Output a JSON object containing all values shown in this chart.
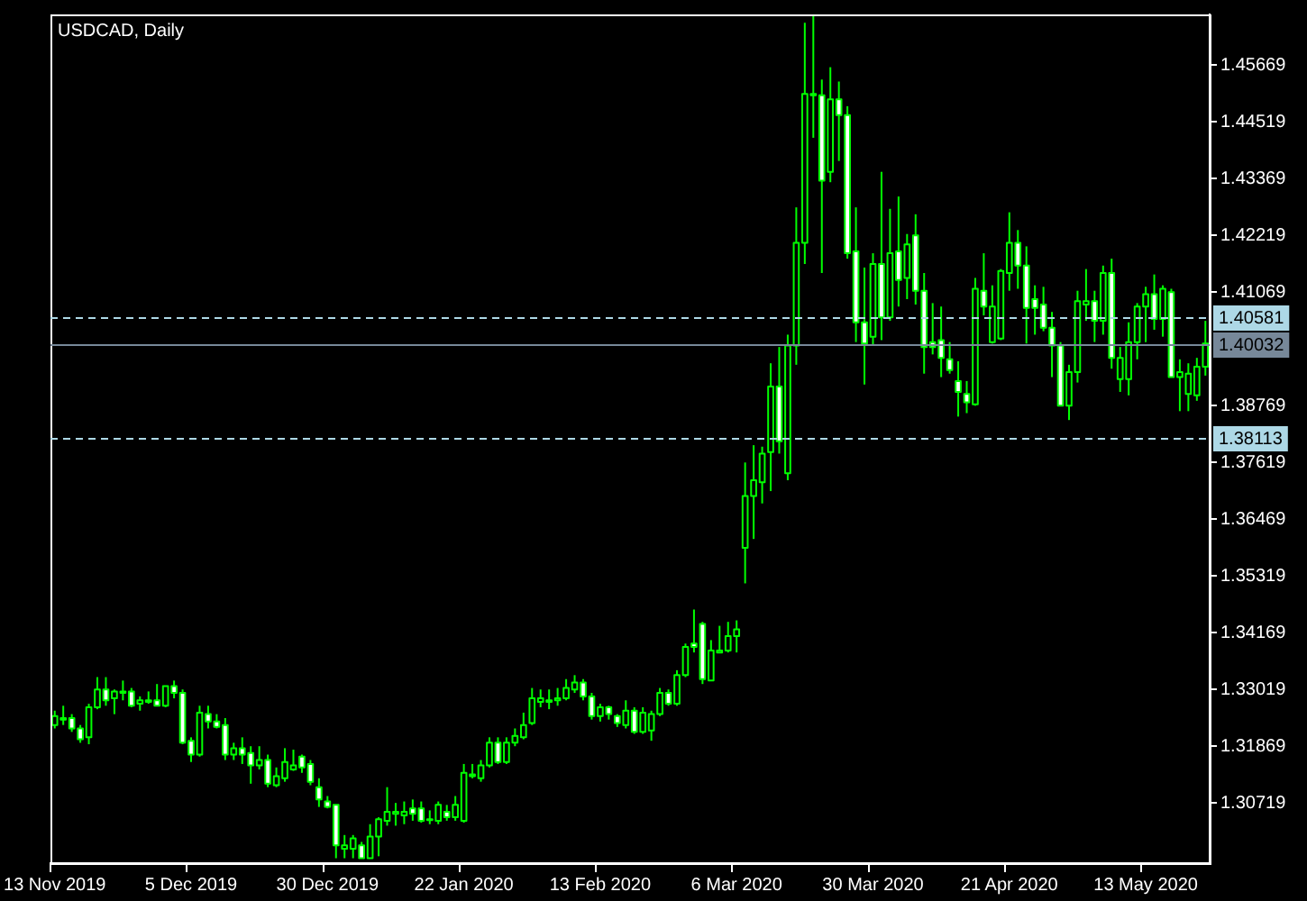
{
  "chart_data": {
    "type": "candlestick",
    "title": "USDCAD, Daily",
    "categories": [
      "13 Nov 2019",
      null,
      null,
      null,
      null,
      null,
      null,
      null,
      null,
      null,
      null,
      null,
      null,
      null,
      null,
      null,
      "5 Dec 2019",
      null,
      null,
      null,
      null,
      null,
      null,
      null,
      null,
      null,
      null,
      null,
      null,
      null,
      null,
      null,
      "30 Dec 2019",
      null,
      null,
      null,
      null,
      null,
      null,
      null,
      null,
      null,
      null,
      null,
      null,
      null,
      null,
      null,
      "22 Jan 2020",
      null,
      null,
      null,
      null,
      null,
      null,
      null,
      null,
      null,
      null,
      null,
      null,
      null,
      null,
      null,
      "13 Feb 2020",
      null,
      null,
      null,
      null,
      null,
      null,
      null,
      null,
      null,
      null,
      null,
      null,
      null,
      null,
      null,
      "6 Mar 2020",
      null,
      null,
      null,
      null,
      null,
      null,
      null,
      null,
      null,
      null,
      null,
      null,
      null,
      null,
      null,
      "30 Mar 2020",
      null,
      null,
      null,
      null,
      null,
      null,
      null,
      null,
      null,
      null,
      null,
      null,
      null,
      null,
      null,
      "21 Apr 2020",
      null,
      null,
      null,
      null,
      null,
      null,
      null,
      null,
      null,
      null,
      null,
      null,
      null,
      null,
      null,
      "13 May 2020",
      null,
      null,
      null,
      null,
      null,
      null,
      null
    ],
    "color": "#00ff00",
    "ohlc": [
      [
        1.323,
        1.3259,
        1.3223,
        1.3248
      ],
      [
        1.3241,
        1.3269,
        1.323,
        1.3244
      ],
      [
        1.3244,
        1.3252,
        1.3216,
        1.3223
      ],
      [
        1.3223,
        1.323,
        1.3194,
        1.3201
      ],
      [
        1.3205,
        1.3273,
        1.3191,
        1.3266
      ],
      [
        1.3266,
        1.3327,
        1.3262,
        1.3302
      ],
      [
        1.3302,
        1.3327,
        1.3269,
        1.328
      ],
      [
        1.3284,
        1.3302,
        1.3252,
        1.3298
      ],
      [
        1.3295,
        1.332,
        1.328,
        1.3298
      ],
      [
        1.3298,
        1.3305,
        1.3266,
        1.3269
      ],
      [
        1.3273,
        1.3288,
        1.3259,
        1.328
      ],
      [
        1.3277,
        1.3298,
        1.3273,
        1.328
      ],
      [
        1.328,
        1.3313,
        1.3269,
        1.3269
      ],
      [
        1.3269,
        1.3309,
        1.3266,
        1.3309
      ],
      [
        1.3309,
        1.332,
        1.3284,
        1.3295
      ],
      [
        1.3295,
        1.3302,
        1.3191,
        1.3194
      ],
      [
        1.3198,
        1.3205,
        1.3155,
        1.317
      ],
      [
        1.317,
        1.3269,
        1.3166,
        1.3255
      ],
      [
        1.3252,
        1.3269,
        1.3223,
        1.3237
      ],
      [
        1.3237,
        1.3252,
        1.3223,
        1.3226
      ],
      [
        1.323,
        1.3244,
        1.3159,
        1.317
      ],
      [
        1.317,
        1.3194,
        1.3159,
        1.3183
      ],
      [
        1.3183,
        1.3205,
        1.3151,
        1.317
      ],
      [
        1.3173,
        1.3187,
        1.3111,
        1.3148
      ],
      [
        1.3148,
        1.3187,
        1.314,
        1.3159
      ],
      [
        1.3159,
        1.317,
        1.3104,
        1.3111
      ],
      [
        1.3108,
        1.3144,
        1.3104,
        1.3126
      ],
      [
        1.3122,
        1.3183,
        1.3115,
        1.3155
      ],
      [
        1.314,
        1.318,
        1.3137,
        1.3148
      ],
      [
        1.3166,
        1.317,
        1.3133,
        1.3144
      ],
      [
        1.3151,
        1.3159,
        1.3108,
        1.3115
      ],
      [
        1.3104,
        1.3122,
        1.3064,
        1.3079
      ],
      [
        1.3075,
        1.3086,
        1.3061,
        1.3064
      ],
      [
        1.3068,
        1.3068,
        1.296,
        1.2986
      ],
      [
        1.2979,
        1.3007,
        1.296,
        1.2986
      ],
      [
        1.2979,
        1.3007,
        1.296,
        1.3
      ],
      [
        1.2986,
        1.2993,
        1.296,
        1.296
      ],
      [
        1.296,
        1.3029,
        1.296,
        1.3004
      ],
      [
        1.3004,
        1.3043,
        1.2964,
        1.3039
      ],
      [
        1.3036,
        1.3104,
        1.3026,
        1.3054
      ],
      [
        1.305,
        1.3072,
        1.3026,
        1.3054
      ],
      [
        1.3047,
        1.3075,
        1.3029,
        1.3054
      ],
      [
        1.3061,
        1.3079,
        1.3036,
        1.305
      ],
      [
        1.3061,
        1.3075,
        1.3032,
        1.3036
      ],
      [
        1.3039,
        1.3057,
        1.3029,
        1.3039
      ],
      [
        1.3036,
        1.3075,
        1.3029,
        1.3068
      ],
      [
        1.3054,
        1.3068,
        1.3036,
        1.3043
      ],
      [
        1.3043,
        1.3086,
        1.3036,
        1.3068
      ],
      [
        1.3036,
        1.3151,
        1.3032,
        1.3133
      ],
      [
        1.3126,
        1.3151,
        1.3122,
        1.313
      ],
      [
        1.3122,
        1.3159,
        1.3115,
        1.3148
      ],
      [
        1.3148,
        1.3205,
        1.3144,
        1.3194
      ],
      [
        1.3194,
        1.3205,
        1.3151,
        1.3155
      ],
      [
        1.3155,
        1.3205,
        1.3151,
        1.3194
      ],
      [
        1.3194,
        1.3223,
        1.3187,
        1.3208
      ],
      [
        1.3205,
        1.3255,
        1.3201,
        1.323
      ],
      [
        1.3234,
        1.3305,
        1.323,
        1.3284
      ],
      [
        1.3277,
        1.3302,
        1.3266,
        1.3284
      ],
      [
        1.328,
        1.3302,
        1.3262,
        1.3277
      ],
      [
        1.328,
        1.3305,
        1.3269,
        1.3284
      ],
      [
        1.3284,
        1.3323,
        1.328,
        1.3305
      ],
      [
        1.3302,
        1.3331,
        1.3295,
        1.3316
      ],
      [
        1.3316,
        1.3323,
        1.328,
        1.3288
      ],
      [
        1.3288,
        1.3295,
        1.3241,
        1.3248
      ],
      [
        1.3248,
        1.3273,
        1.3237,
        1.3266
      ],
      [
        1.3266,
        1.3269,
        1.3241,
        1.3252
      ],
      [
        1.3248,
        1.3252,
        1.3226,
        1.3234
      ],
      [
        1.323,
        1.328,
        1.3223,
        1.3259
      ],
      [
        1.3259,
        1.3266,
        1.3212,
        1.3216
      ],
      [
        1.3216,
        1.3266,
        1.3212,
        1.3255
      ],
      [
        1.3219,
        1.3259,
        1.3198,
        1.3252
      ],
      [
        1.3252,
        1.3305,
        1.3248,
        1.3295
      ],
      [
        1.3295,
        1.3302,
        1.3269,
        1.3273
      ],
      [
        1.3273,
        1.3341,
        1.3269,
        1.3331
      ],
      [
        1.3331,
        1.3395,
        1.3327,
        1.3388
      ],
      [
        1.3395,
        1.3464,
        1.3377,
        1.3388
      ],
      [
        1.3435,
        1.3439,
        1.3313,
        1.3323
      ],
      [
        1.332,
        1.3402,
        1.332,
        1.3381
      ],
      [
        1.3377,
        1.3431,
        1.3377,
        1.3381
      ],
      [
        1.3381,
        1.3439,
        1.3377,
        1.341
      ],
      [
        1.341,
        1.3442,
        1.3377,
        1.3424
      ],
      [
        1.3589,
        1.3762,
        1.3517,
        1.3694
      ],
      [
        1.3694,
        1.3797,
        1.3607,
        1.3726
      ],
      [
        1.3722,
        1.3794,
        1.3679,
        1.378
      ],
      [
        1.3783,
        1.3963,
        1.3704,
        1.3916
      ],
      [
        1.3916,
        1.3996,
        1.378,
        1.3805
      ],
      [
        1.374,
        1.4021,
        1.3726,
        1.3999
      ],
      [
        1.3999,
        1.4279,
        1.396,
        1.4207
      ],
      [
        1.4207,
        1.4653,
        1.4164,
        1.4509
      ],
      [
        1.4509,
        1.4668,
        1.442,
        1.4506
      ],
      [
        1.4506,
        1.4538,
        1.4146,
        1.4333
      ],
      [
        1.4351,
        1.4563,
        1.433,
        1.4498
      ],
      [
        1.4498,
        1.4534,
        1.4373,
        1.4466
      ],
      [
        1.4466,
        1.4484,
        1.4175,
        1.4186
      ],
      [
        1.419,
        1.4279,
        1.4006,
        1.4046
      ],
      [
        1.4046,
        1.4157,
        1.392,
        1.4003
      ],
      [
        1.4017,
        1.4186,
        1.3999,
        1.4164
      ],
      [
        1.4164,
        1.4351,
        1.401,
        1.4056
      ],
      [
        1.4056,
        1.4276,
        1.4049,
        1.4186
      ],
      [
        1.419,
        1.4301,
        1.4078,
        1.4132
      ],
      [
        1.4136,
        1.4225,
        1.4093,
        1.4204
      ],
      [
        1.4222,
        1.4265,
        1.4082,
        1.411
      ],
      [
        1.411,
        1.4146,
        1.3942,
        1.3996
      ],
      [
        1.4006,
        1.4085,
        1.3981,
        1.3996
      ],
      [
        1.401,
        1.4078,
        1.3935,
        1.3974
      ],
      [
        1.3971,
        1.4006,
        1.3942,
        1.3949
      ],
      [
        1.3927,
        1.3967,
        1.3855,
        1.3905
      ],
      [
        1.3901,
        1.3927,
        1.3862,
        1.3884
      ],
      [
        1.388,
        1.4136,
        1.3877,
        1.4114
      ],
      [
        1.411,
        1.4186,
        1.406,
        1.4078
      ],
      [
        1.4006,
        1.4121,
        1.4003,
        1.4078
      ],
      [
        1.4013,
        1.4154,
        1.401,
        1.415
      ],
      [
        1.4146,
        1.4269,
        1.411,
        1.4207
      ],
      [
        1.4207,
        1.4233,
        1.4114,
        1.4161
      ],
      [
        1.4161,
        1.42,
        1.4003,
        1.4075
      ],
      [
        1.4093,
        1.4121,
        1.4021,
        1.4075
      ],
      [
        1.4082,
        1.4118,
        1.4028,
        1.4035
      ],
      [
        1.4035,
        1.4067,
        1.3935,
        1.3999
      ],
      [
        1.3999,
        1.4006,
        1.3877,
        1.3877
      ],
      [
        1.3877,
        1.396,
        1.3848,
        1.3945
      ],
      [
        1.3945,
        1.411,
        1.3924,
        1.4089
      ],
      [
        1.4082,
        1.4154,
        1.4049,
        1.4089
      ],
      [
        1.4089,
        1.411,
        1.4006,
        1.4049
      ],
      [
        1.4049,
        1.4161,
        1.4021,
        1.4146
      ],
      [
        1.4146,
        1.4175,
        1.3952,
        1.3974
      ],
      [
        1.3931,
        1.3996,
        1.3905,
        1.3974
      ],
      [
        1.3931,
        1.4046,
        1.3898,
        1.4006
      ],
      [
        1.4006,
        1.4085,
        1.3971,
        1.4078
      ],
      [
        1.4078,
        1.4118,
        1.4006,
        1.4103
      ],
      [
        1.4103,
        1.4143,
        1.4031,
        1.4053
      ],
      [
        1.4053,
        1.4121,
        1.4017,
        1.4114
      ],
      [
        1.4107,
        1.4114,
        1.3935,
        1.3935
      ],
      [
        1.3935,
        1.3971,
        1.3866,
        1.3945
      ],
      [
        1.3901,
        1.3963,
        1.3866,
        1.3942
      ],
      [
        1.3898,
        1.3974,
        1.3887,
        1.3956
      ],
      [
        1.3956,
        1.4049,
        1.3938,
        1.4003
      ]
    ],
    "ylim": [
      1.295,
      1.467
    ],
    "yticks": [
      1.45669,
      1.44519,
      1.43369,
      1.42219,
      1.41069,
      1.38769,
      1.37619,
      1.36469,
      1.35319,
      1.34169,
      1.33019,
      1.31869,
      1.30719
    ],
    "ref_lines": [
      {
        "axis": "y",
        "value": 1.40581,
        "label": "1.40581",
        "color": "#add8e6",
        "line_style": "dashed"
      },
      {
        "axis": "y",
        "value": 1.40032,
        "label": "1.40032",
        "color": "#778899",
        "line_style": "solid"
      },
      {
        "axis": "y",
        "value": 1.38113,
        "label": "1.38113",
        "color": "#add8e6",
        "line_style": "dashed"
      }
    ],
    "grid": false,
    "legend": false
  }
}
